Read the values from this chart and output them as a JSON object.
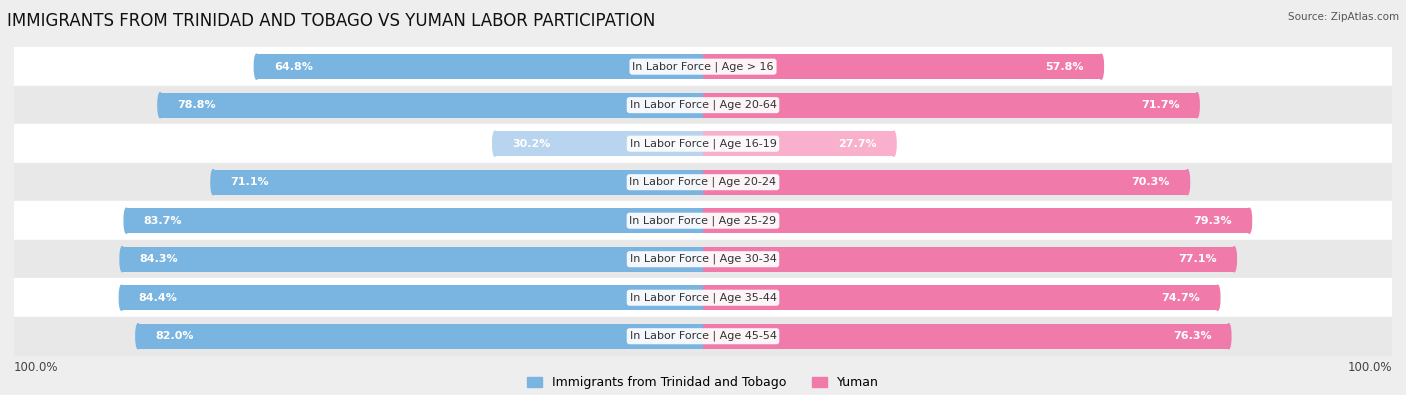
{
  "title": "IMMIGRANTS FROM TRINIDAD AND TOBAGO VS YUMAN LABOR PARTICIPATION",
  "source": "Source: ZipAtlas.com",
  "categories": [
    "In Labor Force | Age > 16",
    "In Labor Force | Age 20-64",
    "In Labor Force | Age 16-19",
    "In Labor Force | Age 20-24",
    "In Labor Force | Age 25-29",
    "In Labor Force | Age 30-34",
    "In Labor Force | Age 35-44",
    "In Labor Force | Age 45-54"
  ],
  "left_values": [
    64.8,
    78.8,
    30.2,
    71.1,
    83.7,
    84.3,
    84.4,
    82.0
  ],
  "right_values": [
    57.8,
    71.7,
    27.7,
    70.3,
    79.3,
    77.1,
    74.7,
    76.3
  ],
  "left_color": "#7ab4e0",
  "right_color": "#f07aaa",
  "left_color_light": "#b8d4ee",
  "right_color_light": "#f8b0cc",
  "bar_height": 0.65,
  "background_color": "#eeeeee",
  "max_value": 100.0,
  "legend_left": "Immigrants from Trinidad and Tobago",
  "legend_right": "Yuman",
  "title_fontsize": 12,
  "label_fontsize": 8,
  "value_fontsize": 8
}
